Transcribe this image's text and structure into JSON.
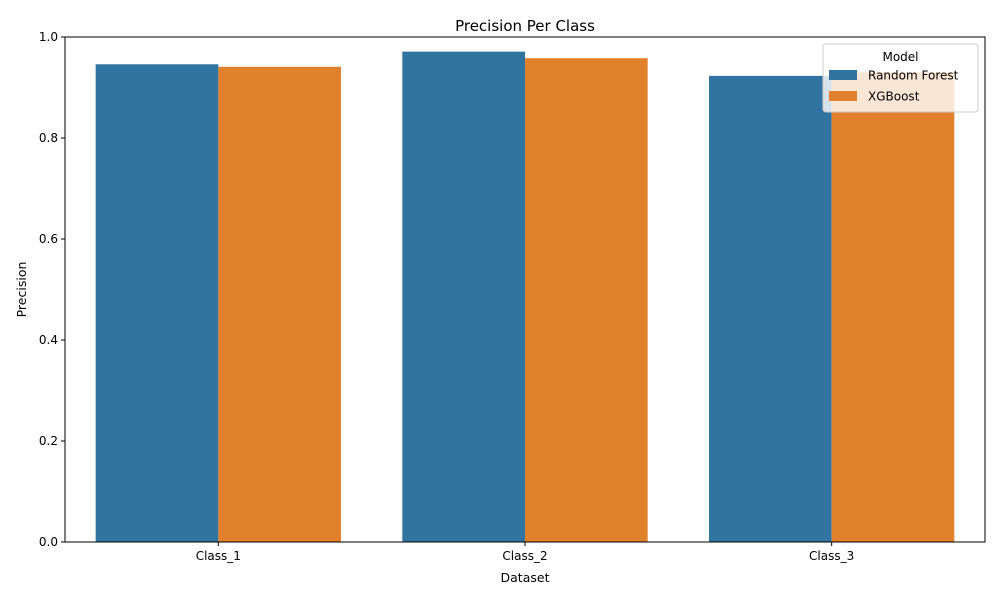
{
  "chart_data": {
    "type": "bar",
    "title": "Precision Per Class",
    "xlabel": "Dataset",
    "ylabel": "Precision",
    "categories": [
      "Class_1",
      "Class_2",
      "Class_3"
    ],
    "series": [
      {
        "name": "Random Forest",
        "color": "#3274a1",
        "values": [
          0.946,
          0.971,
          0.923
        ]
      },
      {
        "name": "XGBoost",
        "color": "#e1812c",
        "values": [
          0.941,
          0.958,
          0.93
        ]
      }
    ],
    "ylim": [
      0,
      1.0
    ],
    "yticks": [
      "0.0",
      "0.2",
      "0.4",
      "0.6",
      "0.8",
      "1.0"
    ],
    "grid": false,
    "legend": {
      "title": "Model",
      "placement": "top-right"
    }
  }
}
